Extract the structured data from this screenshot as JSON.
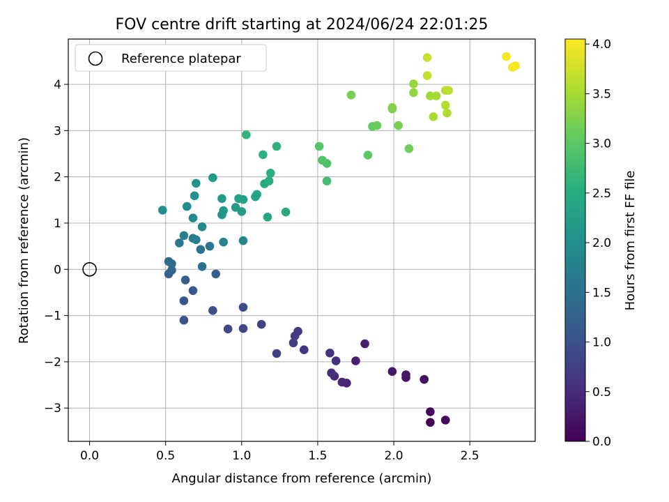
{
  "chart_data": {
    "type": "scatter",
    "title": "FOV centre drift starting at 2024/06/24 22:01:25",
    "xlabel": "Angular distance from reference (arcmin)",
    "ylabel": "Rotation from reference (arcmin)",
    "xlim": [
      -0.14,
      2.93
    ],
    "ylim": [
      -3.72,
      4.98
    ],
    "x_ticks": [
      0.0,
      0.5,
      1.0,
      1.5,
      2.0,
      2.5
    ],
    "x_tick_labels": [
      "0.0",
      "0.5",
      "1.0",
      "1.5",
      "2.0",
      "2.5"
    ],
    "y_ticks": [
      -3,
      -2,
      -1,
      0,
      1,
      2,
      3,
      4
    ],
    "y_tick_labels": [
      "−3",
      "−2",
      "−1",
      "0",
      "1",
      "2",
      "3",
      "4"
    ],
    "grid": true,
    "colormap": "viridis",
    "colorbar": {
      "label": "Hours from first FF file",
      "range": [
        0.0,
        4.05
      ],
      "ticks": [
        0.0,
        0.5,
        1.0,
        1.5,
        2.0,
        2.5,
        3.0,
        3.5,
        4.0
      ],
      "tick_labels": [
        "0.0",
        "0.5",
        "1.0",
        "1.5",
        "2.0",
        "2.5",
        "3.0",
        "3.5",
        "4.0"
      ]
    },
    "legend": {
      "position": "top-left",
      "entry": "Reference platepar"
    },
    "reference_point": {
      "x": 0.0,
      "y": 0.0
    },
    "points": [
      {
        "x": 2.24,
        "y": -3.31,
        "t": 0.0
      },
      {
        "x": 2.34,
        "y": -3.26,
        "t": 0.04
      },
      {
        "x": 2.24,
        "y": -3.08,
        "t": 0.08
      },
      {
        "x": 2.2,
        "y": -2.38,
        "t": 0.15
      },
      {
        "x": 2.08,
        "y": -2.34,
        "t": 0.2
      },
      {
        "x": 2.08,
        "y": -2.28,
        "t": 0.24
      },
      {
        "x": 1.99,
        "y": -2.21,
        "t": 0.28
      },
      {
        "x": 1.81,
        "y": -1.61,
        "t": 0.33
      },
      {
        "x": 1.75,
        "y": -1.98,
        "t": 0.37
      },
      {
        "x": 1.69,
        "y": -2.46,
        "t": 0.4
      },
      {
        "x": 1.66,
        "y": -2.44,
        "t": 0.44
      },
      {
        "x": 1.61,
        "y": -2.31,
        "t": 0.47
      },
      {
        "x": 1.59,
        "y": -2.24,
        "t": 0.51
      },
      {
        "x": 1.62,
        "y": -1.98,
        "t": 0.55
      },
      {
        "x": 1.58,
        "y": -1.81,
        "t": 0.58
      },
      {
        "x": 1.41,
        "y": -1.74,
        "t": 0.62
      },
      {
        "x": 1.37,
        "y": -1.34,
        "t": 0.66
      },
      {
        "x": 1.35,
        "y": -1.44,
        "t": 0.69
      },
      {
        "x": 1.34,
        "y": -1.59,
        "t": 0.72
      },
      {
        "x": 1.23,
        "y": -1.82,
        "t": 0.76
      },
      {
        "x": 1.13,
        "y": -1.19,
        "t": 0.8
      },
      {
        "x": 1.01,
        "y": -1.28,
        "t": 0.84
      },
      {
        "x": 0.91,
        "y": -1.29,
        "t": 0.88
      },
      {
        "x": 1.01,
        "y": -0.82,
        "t": 0.93
      },
      {
        "x": 0.81,
        "y": -0.89,
        "t": 0.98
      },
      {
        "x": 0.62,
        "y": -1.1,
        "t": 1.03
      },
      {
        "x": 0.62,
        "y": -0.68,
        "t": 1.08
      },
      {
        "x": 0.68,
        "y": -0.46,
        "t": 1.13
      },
      {
        "x": 0.63,
        "y": -0.23,
        "t": 1.18
      },
      {
        "x": 0.83,
        "y": -0.1,
        "t": 1.23
      },
      {
        "x": 0.52,
        "y": -0.1,
        "t": 1.28
      },
      {
        "x": 0.54,
        "y": -0.02,
        "t": 1.33
      },
      {
        "x": 0.54,
        "y": 0.12,
        "t": 1.38
      },
      {
        "x": 0.52,
        "y": 0.17,
        "t": 1.43
      },
      {
        "x": 0.74,
        "y": 0.06,
        "t": 1.48
      },
      {
        "x": 0.73,
        "y": 0.43,
        "t": 1.53
      },
      {
        "x": 0.79,
        "y": 0.5,
        "t": 1.58
      },
      {
        "x": 0.59,
        "y": 0.57,
        "t": 1.63
      },
      {
        "x": 0.68,
        "y": 0.67,
        "t": 1.67
      },
      {
        "x": 0.7,
        "y": 0.64,
        "t": 1.71
      },
      {
        "x": 0.62,
        "y": 0.73,
        "t": 1.75
      },
      {
        "x": 0.88,
        "y": 0.59,
        "t": 1.79
      },
      {
        "x": 1.01,
        "y": 0.62,
        "t": 1.83
      },
      {
        "x": 0.74,
        "y": 0.92,
        "t": 1.87
      },
      {
        "x": 0.68,
        "y": 1.11,
        "t": 1.91
      },
      {
        "x": 0.64,
        "y": 1.36,
        "t": 1.95
      },
      {
        "x": 0.48,
        "y": 1.28,
        "t": 2.0
      },
      {
        "x": 0.69,
        "y": 1.59,
        "t": 2.04
      },
      {
        "x": 0.7,
        "y": 1.86,
        "t": 2.08
      },
      {
        "x": 0.87,
        "y": 1.18,
        "t": 2.11
      },
      {
        "x": 0.88,
        "y": 1.27,
        "t": 2.14
      },
      {
        "x": 0.87,
        "y": 1.53,
        "t": 2.17
      },
      {
        "x": 0.81,
        "y": 1.98,
        "t": 2.2
      },
      {
        "x": 0.96,
        "y": 1.34,
        "t": 2.23
      },
      {
        "x": 1.0,
        "y": 1.25,
        "t": 2.26
      },
      {
        "x": 0.98,
        "y": 1.53,
        "t": 2.29
      },
      {
        "x": 1.01,
        "y": 1.51,
        "t": 2.32
      },
      {
        "x": 1.09,
        "y": 1.57,
        "t": 2.35
      },
      {
        "x": 1.1,
        "y": 1.62,
        "t": 2.38
      },
      {
        "x": 1.17,
        "y": 1.13,
        "t": 2.41
      },
      {
        "x": 1.29,
        "y": 1.24,
        "t": 2.44
      },
      {
        "x": 1.15,
        "y": 1.85,
        "t": 2.47
      },
      {
        "x": 1.18,
        "y": 1.91,
        "t": 2.5
      },
      {
        "x": 1.19,
        "y": 2.08,
        "t": 2.53
      },
      {
        "x": 1.14,
        "y": 2.48,
        "t": 2.56
      },
      {
        "x": 1.23,
        "y": 2.66,
        "t": 2.59
      },
      {
        "x": 1.03,
        "y": 2.91,
        "t": 2.62
      },
      {
        "x": 1.56,
        "y": 1.91,
        "t": 2.8
      },
      {
        "x": 1.56,
        "y": 2.29,
        "t": 2.86
      },
      {
        "x": 1.53,
        "y": 2.36,
        "t": 2.91
      },
      {
        "x": 1.51,
        "y": 2.66,
        "t": 2.96
      },
      {
        "x": 1.83,
        "y": 2.47,
        "t": 3.01
      },
      {
        "x": 1.86,
        "y": 3.09,
        "t": 3.06
      },
      {
        "x": 1.89,
        "y": 3.11,
        "t": 3.11
      },
      {
        "x": 2.1,
        "y": 2.61,
        "t": 3.16
      },
      {
        "x": 2.03,
        "y": 3.11,
        "t": 3.2
      },
      {
        "x": 1.99,
        "y": 3.47,
        "t": 3.23
      },
      {
        "x": 1.99,
        "y": 3.5,
        "t": 3.26
      },
      {
        "x": 1.72,
        "y": 3.77,
        "t": 3.2
      },
      {
        "x": 2.13,
        "y": 3.82,
        "t": 3.36
      },
      {
        "x": 2.13,
        "y": 4.01,
        "t": 3.4
      },
      {
        "x": 2.24,
        "y": 3.75,
        "t": 3.45
      },
      {
        "x": 2.28,
        "y": 3.75,
        "t": 3.48
      },
      {
        "x": 2.26,
        "y": 3.3,
        "t": 3.52
      },
      {
        "x": 2.35,
        "y": 3.38,
        "t": 3.55
      },
      {
        "x": 2.34,
        "y": 3.55,
        "t": 3.58
      },
      {
        "x": 2.34,
        "y": 3.87,
        "t": 3.61
      },
      {
        "x": 2.36,
        "y": 3.87,
        "t": 3.64
      },
      {
        "x": 2.22,
        "y": 4.19,
        "t": 3.68
      },
      {
        "x": 2.22,
        "y": 4.58,
        "t": 3.72
      },
      {
        "x": 2.74,
        "y": 4.6,
        "t": 4.0
      },
      {
        "x": 2.78,
        "y": 4.37,
        "t": 4.02
      },
      {
        "x": 2.8,
        "y": 4.4,
        "t": 4.04
      }
    ]
  }
}
